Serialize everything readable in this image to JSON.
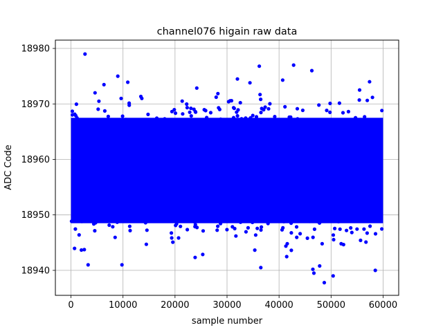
{
  "chart_data": {
    "type": "scatter",
    "title": "channel076 higain raw data",
    "xlabel": "sample number",
    "ylabel": "ADC Code",
    "xlim": [
      -3000,
      63000
    ],
    "ylim": [
      18935.5,
      18981.5
    ],
    "xticks": [
      0,
      10000,
      20000,
      30000,
      40000,
      50000,
      60000
    ],
    "xtick_labels": [
      "0",
      "10000",
      "20000",
      "30000",
      "40000",
      "50000",
      "60000"
    ],
    "yticks": [
      18940,
      18950,
      18960,
      18970,
      18980
    ],
    "ytick_labels": [
      "18940",
      "18950",
      "18960",
      "18970",
      "18980"
    ],
    "grid": true,
    "marker_color": "#0000ff",
    "series": [
      {
        "x_range": [
          0,
          59999
        ],
        "dense_band": [
          18946,
          18970
        ],
        "outliers": [
          {
            "x": 2700,
            "y": 18979
          },
          {
            "x": 9000,
            "y": 18975
          },
          {
            "x": 32000,
            "y": 18974.5
          },
          {
            "x": 36200,
            "y": 18976.8
          },
          {
            "x": 40700,
            "y": 18974.3
          },
          {
            "x": 42800,
            "y": 18977
          },
          {
            "x": 46300,
            "y": 18976
          },
          {
            "x": 57400,
            "y": 18974
          },
          {
            "x": 3300,
            "y": 18941
          },
          {
            "x": 9800,
            "y": 18941
          },
          {
            "x": 36500,
            "y": 18940.5
          },
          {
            "x": 46500,
            "y": 18940.2
          },
          {
            "x": 46700,
            "y": 18939.5
          },
          {
            "x": 47800,
            "y": 18940.8
          },
          {
            "x": 48700,
            "y": 18937.8
          },
          {
            "x": 50400,
            "y": 18939
          },
          {
            "x": 58500,
            "y": 18940
          }
        ]
      }
    ]
  }
}
